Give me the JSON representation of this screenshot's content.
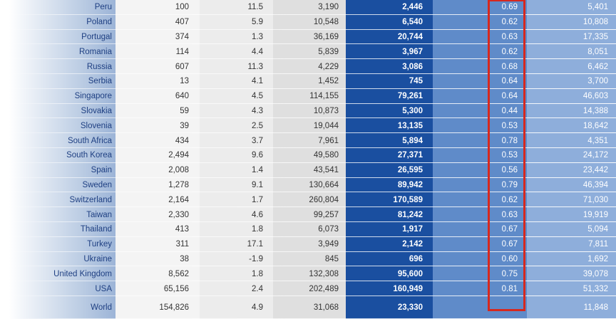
{
  "table": {
    "rows": [
      {
        "country": "Peru",
        "c1": "100",
        "c2": "11.5",
        "c3": "3,190",
        "c4": "2,446",
        "c5": "0.69",
        "c6": "5,401"
      },
      {
        "country": "Poland",
        "c1": "407",
        "c2": "5.9",
        "c3": "10,548",
        "c4": "6,540",
        "c5": "0.62",
        "c6": "10,808"
      },
      {
        "country": "Portugal",
        "c1": "374",
        "c2": "1.3",
        "c3": "36,169",
        "c4": "20,744",
        "c5": "0.63",
        "c6": "17,335"
      },
      {
        "country": "Romania",
        "c1": "114",
        "c2": "4.4",
        "c3": "5,839",
        "c4": "3,967",
        "c5": "0.62",
        "c6": "8,051"
      },
      {
        "country": "Russia",
        "c1": "607",
        "c2": "11.3",
        "c3": "4,229",
        "c4": "3,086",
        "c5": "0.68",
        "c6": "6,462"
      },
      {
        "country": "Serbia",
        "c1": "13",
        "c2": "4.1",
        "c3": "1,452",
        "c4": "745",
        "c5": "0.64",
        "c6": "3,700"
      },
      {
        "country": "Singapore",
        "c1": "640",
        "c2": "4.5",
        "c3": "114,155",
        "c4": "79,261",
        "c5": "0.64",
        "c6": "46,603"
      },
      {
        "country": "Slovakia",
        "c1": "59",
        "c2": "4.3",
        "c3": "10,873",
        "c4": "5,300",
        "c5": "0.44",
        "c6": "14,388"
      },
      {
        "country": "Slovenia",
        "c1": "39",
        "c2": "2.5",
        "c3": "19,044",
        "c4": "13,135",
        "c5": "0.53",
        "c6": "18,642"
      },
      {
        "country": "South Africa",
        "c1": "434",
        "c2": "3.7",
        "c3": "7,961",
        "c4": "5,894",
        "c5": "0.78",
        "c6": "4,351"
      },
      {
        "country": "South Korea",
        "c1": "2,494",
        "c2": "9.6",
        "c3": "49,580",
        "c4": "27,371",
        "c5": "0.53",
        "c6": "24,172"
      },
      {
        "country": "Spain",
        "c1": "2,008",
        "c2": "1.4",
        "c3": "43,541",
        "c4": "26,595",
        "c5": "0.56",
        "c6": "23,442"
      },
      {
        "country": "Sweden",
        "c1": "1,278",
        "c2": "9.1",
        "c3": "130,664",
        "c4": "89,942",
        "c5": "0.79",
        "c6": "46,394"
      },
      {
        "country": "Switzerland",
        "c1": "2,164",
        "c2": "1.7",
        "c3": "260,804",
        "c4": "170,589",
        "c5": "0.62",
        "c6": "71,030"
      },
      {
        "country": "Taiwan",
        "c1": "2,330",
        "c2": "4.6",
        "c3": "99,257",
        "c4": "81,242",
        "c5": "0.63",
        "c6": "19,919"
      },
      {
        "country": "Thailand",
        "c1": "413",
        "c2": "1.8",
        "c3": "6,073",
        "c4": "1,917",
        "c5": "0.67",
        "c6": "5,094"
      },
      {
        "country": "Turkey",
        "c1": "311",
        "c2": "17.1",
        "c3": "3,949",
        "c4": "2,142",
        "c5": "0.67",
        "c6": "7,811"
      },
      {
        "country": "Ukraine",
        "c1": "38",
        "c2": "-1.9",
        "c3": "845",
        "c4": "696",
        "c5": "0.60",
        "c6": "1,692"
      },
      {
        "country": "United Kingdom",
        "c1": "8,562",
        "c2": "1.8",
        "c3": "132,308",
        "c4": "95,600",
        "c5": "0.75",
        "c6": "39,078"
      },
      {
        "country": "USA",
        "c1": "65,156",
        "c2": "2.4",
        "c3": "202,489",
        "c4": "160,949",
        "c5": "0.81",
        "c6": "51,332"
      },
      {
        "country": "World",
        "c1": "154,826",
        "c2": "4.9",
        "c3": "31,068",
        "c4": "23,330",
        "c5": "",
        "c6": "11,848"
      }
    ]
  },
  "colors": {
    "highlight_border": "#d6281f",
    "country_text": "#1e3f82",
    "dark_blue_column": "#1a4fa0"
  }
}
